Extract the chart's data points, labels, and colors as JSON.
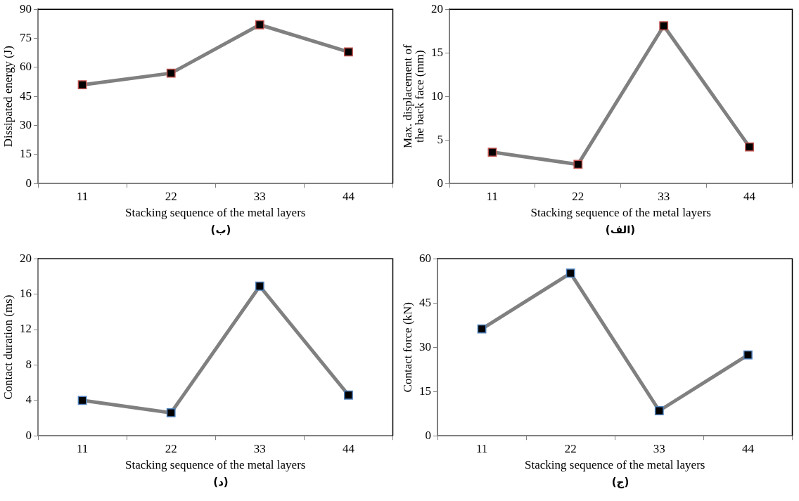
{
  "chart_data": [
    {
      "type": "line",
      "xlabel": "Stacking sequence of the metal layers",
      "ylabel": "Dissipated energy (J)",
      "categories": [
        "11",
        "22",
        "33",
        "44"
      ],
      "series": [
        {
          "color": "#808080",
          "values": [
            51,
            57,
            82,
            68
          ]
        }
      ],
      "ylim": [
        0,
        90
      ],
      "yticks": [
        0,
        15,
        30,
        45,
        60,
        75,
        90
      ],
      "marker": "square",
      "grid": false,
      "legend": false,
      "annotations": [
        "(ب)"
      ]
    },
    {
      "type": "line",
      "xlabel": "Stacking sequence of the metal layers",
      "ylabel": "Max. displacement of the back face (mm)",
      "categories": [
        "11",
        "22",
        "33",
        "44"
      ],
      "series": [
        {
          "color": "#808080",
          "values": [
            3.6,
            2.2,
            18.1,
            4.2
          ]
        }
      ],
      "ylim": [
        0,
        20
      ],
      "yticks": [
        0,
        5,
        10,
        15,
        20
      ],
      "marker": "square",
      "grid": false,
      "legend": false,
      "annotations": [
        "(الف)"
      ]
    },
    {
      "type": "line",
      "xlabel": "Stacking sequence of the metal layers",
      "ylabel": "Contact duration (ms)",
      "categories": [
        "11",
        "22",
        "33",
        "44"
      ],
      "series": [
        {
          "color": "#808080",
          "values": [
            4.0,
            2.6,
            16.9,
            4.6
          ]
        }
      ],
      "ylim": [
        0,
        20
      ],
      "yticks": [
        0,
        4,
        8,
        12,
        16,
        20
      ],
      "marker": "square",
      "grid": false,
      "legend": false,
      "annotations": [
        "(د)"
      ]
    },
    {
      "type": "line",
      "xlabel": "Stacking sequence of the metal layers",
      "ylabel": "Contact force (kN)",
      "categories": [
        "11",
        "22",
        "33",
        "44"
      ],
      "series": [
        {
          "color": "#808080",
          "values": [
            36.2,
            55.1,
            8.5,
            27.4
          ]
        }
      ],
      "ylim": [
        0,
        60
      ],
      "yticks": [
        0,
        15,
        30,
        45,
        60
      ],
      "marker": "square",
      "grid": false,
      "legend": false,
      "annotations": [
        "(ج)"
      ]
    }
  ]
}
